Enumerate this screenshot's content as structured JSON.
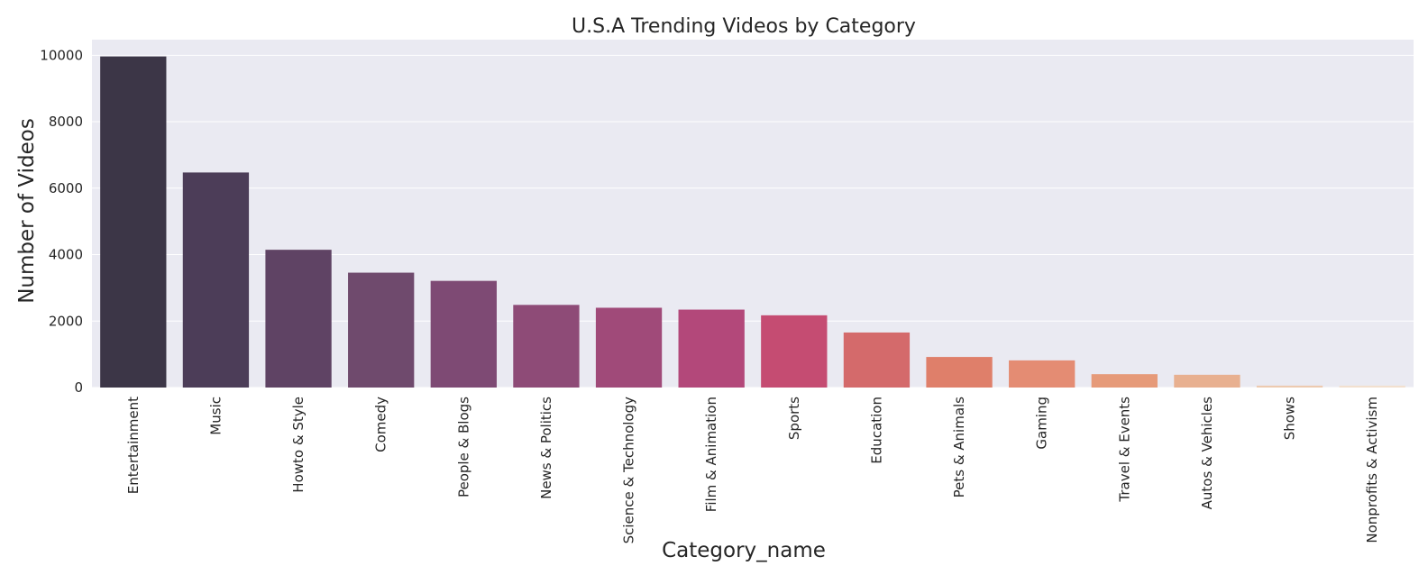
{
  "chart_data": {
    "type": "bar",
    "title": "U.S.A Trending Videos by Category",
    "xlabel": "Category_name",
    "ylabel": "Number of Videos",
    "categories": [
      "Entertainment",
      "Music",
      "Howto & Style",
      "Comedy",
      "People & Blogs",
      "News & Politics",
      "Science & Technology",
      "Film & Animation",
      "Sports",
      "Education",
      "Pets & Animals",
      "Gaming",
      "Travel & Events",
      "Autos & Vehicles",
      "Shows",
      "Nonprofits & Activism"
    ],
    "values": [
      9964,
      6472,
      4146,
      3457,
      3210,
      2487,
      2401,
      2345,
      2174,
      1656,
      920,
      817,
      402,
      384,
      57,
      57
    ],
    "ylim": [
      0,
      10470
    ],
    "yticks": [
      0,
      2000,
      4000,
      6000,
      8000,
      10000
    ],
    "grid": true,
    "legend": "none",
    "colors": [
      "#3c3647",
      "#4c3d58",
      "#5f4364",
      "#6f4a6d",
      "#7e4a74",
      "#8e4b77",
      "#a04a79",
      "#b3487a",
      "#c54c72",
      "#d46a6b",
      "#df7f6a",
      "#e48c73",
      "#e69a79",
      "#e8b090",
      "#edcab0",
      "#f2e0cf"
    ]
  }
}
